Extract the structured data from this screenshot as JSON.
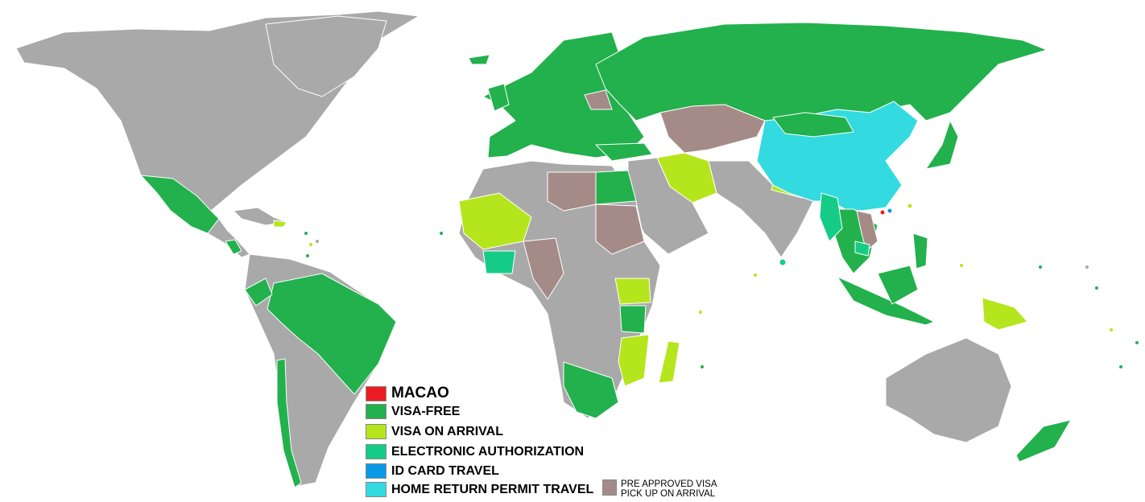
{
  "map": {
    "colors": {
      "ocean": "#ffffff",
      "other": "#a9a9a9",
      "visa_free": "#22b14c",
      "visa_on_arrival": "#b5e61d",
      "electronic_authorization": "#15cc86",
      "home_return_permit": "#33dbe0",
      "pre_approved": "#a58b87",
      "macao": "#ed1c24",
      "id_card": "#0a99e6",
      "border": "#ffffff"
    }
  },
  "legend": {
    "items": [
      {
        "key": "macao",
        "label": "MACAO",
        "color": "#ed1c24"
      },
      {
        "key": "visa_free",
        "label": "VISA-FREE",
        "color": "#22b14c"
      },
      {
        "key": "visa_on_arrival",
        "label": "VISA ON ARRIVAL",
        "color": "#b5e61d"
      },
      {
        "key": "electronic_authorization",
        "label": "ELECTRONIC AUTHORIZATION",
        "color": "#15cc86"
      },
      {
        "key": "id_card",
        "label": "ID CARD TRAVEL",
        "color": "#0a99e6"
      },
      {
        "key": "home_return_permit",
        "label": "HOME RETURN PERMIT TRAVEL",
        "color": "#33dbe0"
      }
    ],
    "side_item": {
      "key": "pre_approved",
      "line1": "PRE APPROVED VISA",
      "line2": "PICK UP ON ARRIVAL",
      "color": "#a58b87"
    }
  }
}
